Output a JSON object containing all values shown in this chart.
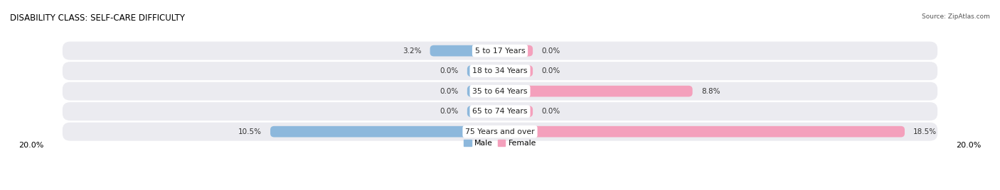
{
  "title": "DISABILITY CLASS: SELF-CARE DIFFICULTY",
  "source": "Source: ZipAtlas.com",
  "categories": [
    "5 to 17 Years",
    "18 to 34 Years",
    "35 to 64 Years",
    "65 to 74 Years",
    "75 Years and over"
  ],
  "male_values": [
    3.2,
    0.0,
    0.0,
    0.0,
    10.5
  ],
  "female_values": [
    0.0,
    0.0,
    8.8,
    0.0,
    18.5
  ],
  "max_val": 20.0,
  "male_color": "#8db8dc",
  "female_color": "#f4a0bc",
  "row_bg_color": "#ebebf0",
  "row_alt_bg_color": "#f5f5f8",
  "title_fontsize": 8.5,
  "label_fontsize": 7.8,
  "value_fontsize": 7.5,
  "axis_label_fontsize": 8,
  "legend_fontsize": 7.8,
  "min_bar_pct": 1.5
}
